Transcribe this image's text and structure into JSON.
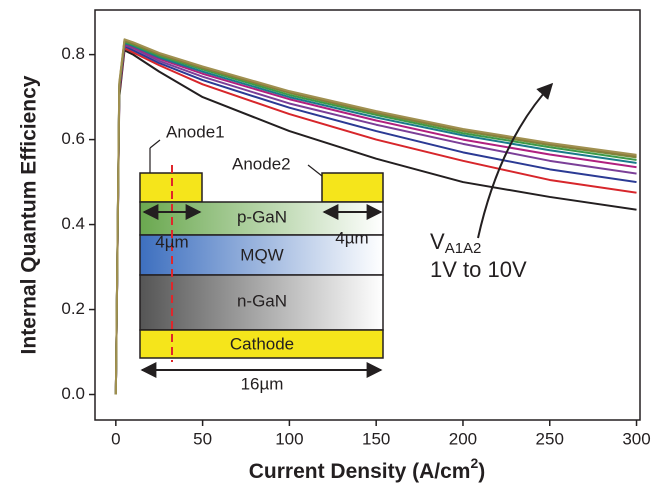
{
  "chart_data": {
    "type": "line",
    "ylabel": "Internal Quantum Efficiency",
    "xlabel_parts": [
      "Current Density (A/cm",
      "2",
      ")"
    ],
    "x": [
      0,
      2,
      5,
      10,
      25,
      50,
      100,
      150,
      200,
      250,
      300
    ],
    "series": [
      {
        "color": "#231f20",
        "values": [
          0,
          0.7,
          0.81,
          0.8,
          0.76,
          0.7,
          0.62,
          0.555,
          0.5,
          0.465,
          0.435
        ]
      },
      {
        "color": "#d7262b",
        "values": [
          0,
          0.71,
          0.815,
          0.805,
          0.775,
          0.73,
          0.66,
          0.6,
          0.55,
          0.505,
          0.475
        ]
      },
      {
        "color": "#2b3a94",
        "values": [
          0,
          0.715,
          0.82,
          0.81,
          0.78,
          0.74,
          0.675,
          0.62,
          0.57,
          0.53,
          0.5
        ]
      },
      {
        "color": "#7b3f98",
        "values": [
          0,
          0.72,
          0.822,
          0.815,
          0.785,
          0.748,
          0.685,
          0.635,
          0.59,
          0.55,
          0.52
        ]
      },
      {
        "color": "#b0207f",
        "values": [
          0,
          0.72,
          0.825,
          0.818,
          0.79,
          0.755,
          0.695,
          0.645,
          0.6,
          0.565,
          0.535
        ]
      },
      {
        "color": "#1a7a8a",
        "values": [
          0,
          0.725,
          0.827,
          0.82,
          0.793,
          0.76,
          0.7,
          0.652,
          0.61,
          0.575,
          0.545
        ]
      },
      {
        "color": "#3c9a48",
        "values": [
          0,
          0.725,
          0.83,
          0.823,
          0.797,
          0.765,
          0.705,
          0.658,
          0.615,
          0.582,
          0.552
        ]
      },
      {
        "color": "#7a8a3a",
        "values": [
          0,
          0.73,
          0.832,
          0.825,
          0.8,
          0.768,
          0.71,
          0.662,
          0.62,
          0.587,
          0.558
        ]
      },
      {
        "color": "#8c7a3c",
        "values": [
          0,
          0.73,
          0.834,
          0.827,
          0.802,
          0.77,
          0.712,
          0.665,
          0.623,
          0.59,
          0.561
        ]
      },
      {
        "color": "#a09050",
        "values": [
          0,
          0.735,
          0.836,
          0.829,
          0.804,
          0.772,
          0.714,
          0.667,
          0.625,
          0.592,
          0.564
        ]
      }
    ],
    "xlim": [
      -12,
      302
    ],
    "ylim": [
      -0.06,
      0.905
    ],
    "xticks": [
      0,
      50,
      100,
      150,
      200,
      250,
      300
    ],
    "yticks": [
      {
        "value": 0,
        "label": "0.0"
      },
      0.2,
      0.4,
      0.6,
      0.8
    ],
    "annotation": {
      "symbol": "V",
      "subscript": "A1A2",
      "range": "1V to 10V"
    },
    "inset": {
      "anode1": "Anode1",
      "anode2": "Anode2",
      "p_layer": "p-GaN",
      "mqw": "MQW",
      "n_layer": "n-GaN",
      "cathode": "Cathode",
      "left_width": "4µm",
      "right_width": "4µm",
      "total_width": "16µm"
    }
  }
}
